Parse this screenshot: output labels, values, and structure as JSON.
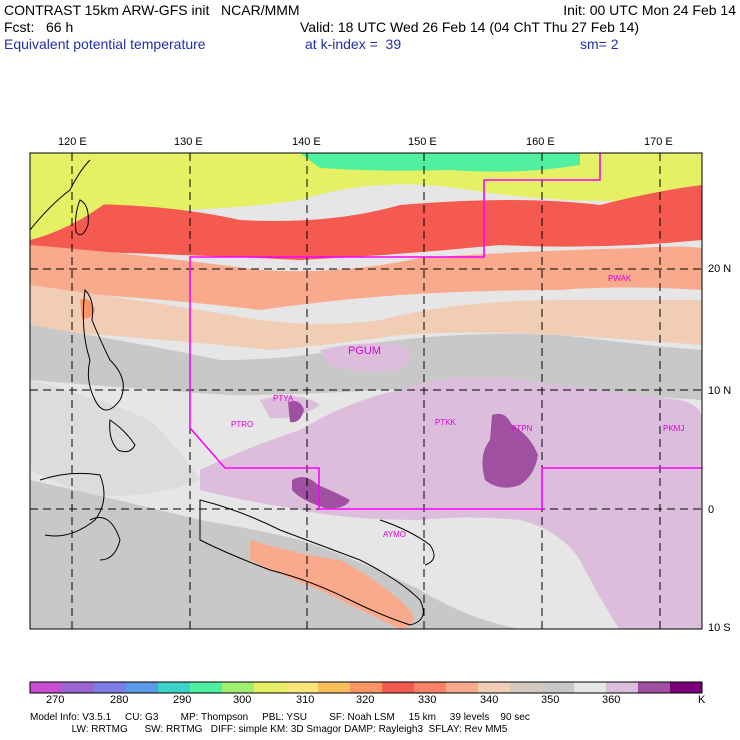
{
  "header": {
    "title": "CONTRAST 15km ARW-GFS init   NCAR/MMM",
    "init": "Init: 00 UTC Mon 24 Feb 14",
    "fcst": "Fcst:   66 h",
    "valid": "Valid: 18 UTC Wed 26 Feb 14 (04 ChT Thu 27 Feb 14)",
    "field": "Equivalent potential temperature",
    "level": "at k-index =  39",
    "smooth": "sm= 2"
  },
  "axes": {
    "lon_ticks": [
      "120 E",
      "130 E",
      "140 E",
      "150 E",
      "160 E",
      "170 E"
    ],
    "lat_ticks": [
      "20 N",
      "10 N",
      "0",
      "10 S"
    ]
  },
  "stations": [
    "PGUM",
    "PTYA",
    "PTRO",
    "PTKK",
    "PTPN",
    "PKMJ",
    "PWAK",
    "AYMO"
  ],
  "colorbar": {
    "labels": [
      "270",
      "280",
      "290",
      "300",
      "310",
      "320",
      "330",
      "340",
      "350",
      "360"
    ],
    "unit": "K",
    "colors": [
      "#c84fd2",
      "#9a64d2",
      "#7c7ee6",
      "#5a9ae6",
      "#3cd2c8",
      "#50f0a0",
      "#a0f070",
      "#e6f064",
      "#fae678",
      "#fabe5a",
      "#fa9664",
      "#f55a50",
      "#fa8268",
      "#faaa8c",
      "#f0cdb4",
      "#d2c8be",
      "#c8c8c8",
      "#e6e6e6",
      "#dcbedc",
      "#a050a0",
      "#7a007a"
    ]
  },
  "footer": {
    "line1": "Model Info: V3.5.1     CU: G3        MP: Thompson     PBL: YSU        SF: Noah LSM     15 km     39 levels    90 sec",
    "line2": "               LW: RRTMG      SW: RRTMG   DIFF: simple KM: 3D Smagor DAMP: Rayleigh3  SFLAY: Rev MM5"
  },
  "colors": {
    "boundary": "#ff00ff",
    "station": "#d800d8",
    "title_blue": "#1f2fb0"
  }
}
